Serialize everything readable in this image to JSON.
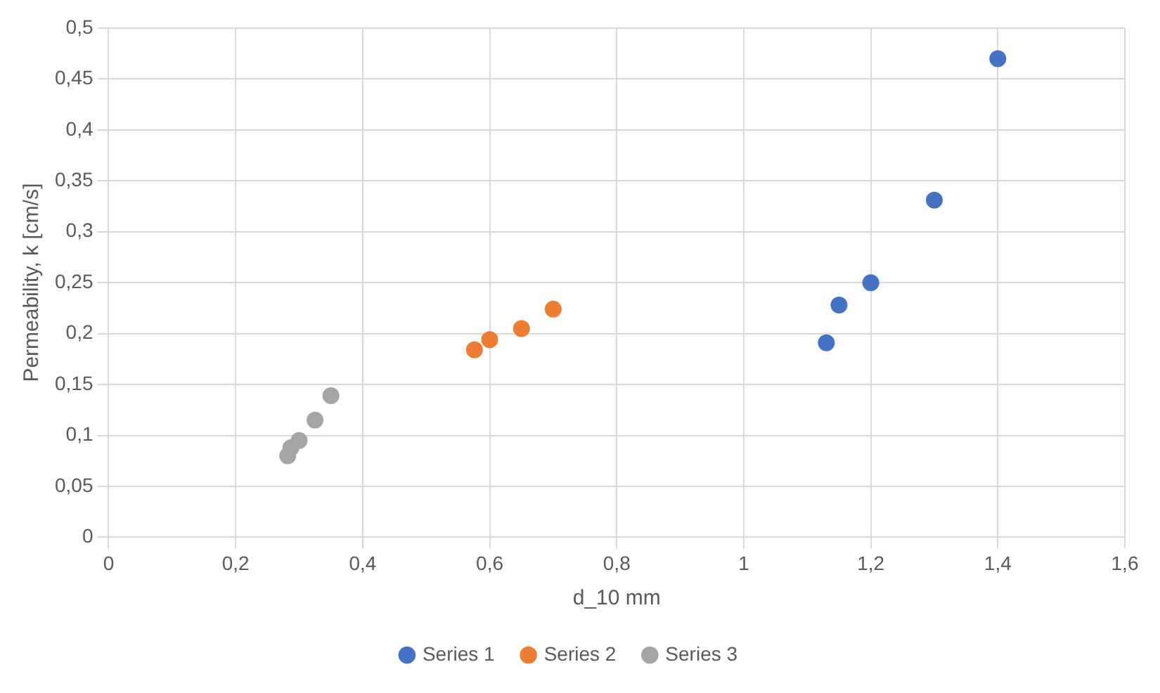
{
  "chart_data": {
    "type": "scatter",
    "xlabel": "d_10 mm",
    "ylabel": "Permeability, k [cm/s]",
    "series": [
      {
        "name": "Series 1",
        "color": "#4472c4",
        "x": [
          1.4,
          1.3,
          1.2,
          1.15,
          1.13
        ],
        "values": [
          0.47,
          0.331,
          0.25,
          0.228,
          0.191
        ]
      },
      {
        "name": "Series 2",
        "color": "#ed7d31",
        "x": [
          0.576,
          0.6,
          0.65,
          0.7
        ],
        "values": [
          0.184,
          0.194,
          0.205,
          0.224
        ]
      },
      {
        "name": "Series 3",
        "color": "#a5a5a5",
        "x": [
          0.282,
          0.287,
          0.3,
          0.325,
          0.35
        ],
        "values": [
          0.08,
          0.088,
          0.095,
          0.115,
          0.139
        ]
      }
    ],
    "xlim": [
      0,
      1.6
    ],
    "xticks": [
      0,
      {
        "value": 0.2,
        "label": "0,2"
      },
      {
        "value": 0.4,
        "label": "0,4"
      },
      {
        "value": 0.6,
        "label": "0,6"
      },
      {
        "value": 0.8,
        "label": "0,8"
      },
      1,
      {
        "value": 1.2,
        "label": "1,2"
      },
      {
        "value": 1.4,
        "label": "1,4"
      },
      {
        "value": 1.6,
        "label": "1,6"
      }
    ],
    "ylim": [
      0,
      0.5
    ],
    "yticks": [
      0,
      {
        "value": 0.05,
        "label": "0,05"
      },
      {
        "value": 0.1,
        "label": "0,1"
      },
      {
        "value": 0.15,
        "label": "0,15"
      },
      {
        "value": 0.2,
        "label": "0,2"
      },
      {
        "value": 0.25,
        "label": "0,25"
      },
      {
        "value": 0.3,
        "label": "0,3"
      },
      {
        "value": 0.35,
        "label": "0,35"
      },
      {
        "value": 0.4,
        "label": "0,4"
      },
      {
        "value": 0.45,
        "label": "0,45"
      },
      {
        "value": 0.5,
        "label": "0,5"
      }
    ],
    "grid": true,
    "legend": "bottom",
    "marker": "circle"
  }
}
